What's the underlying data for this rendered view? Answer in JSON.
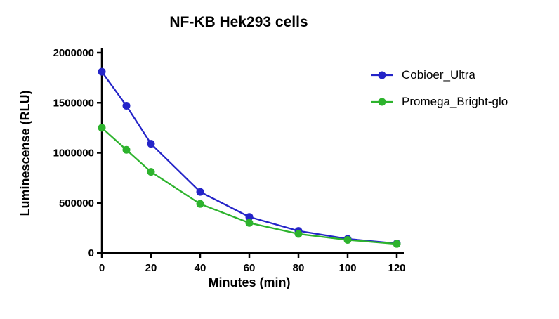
{
  "chart_data": {
    "type": "line",
    "title": "NF-KB Hek293 cells",
    "xlabel": "Minutes (min)",
    "ylabel": "Luminescense (RLU)",
    "x": [
      0,
      10,
      20,
      40,
      60,
      80,
      100,
      120
    ],
    "series": [
      {
        "name": "Cobioer_Ultra",
        "color": "#2424c8",
        "values": [
          1810000,
          1470000,
          1090000,
          610000,
          360000,
          220000,
          140000,
          95000
        ]
      },
      {
        "name": "Promega_Bright-glo",
        "color": "#2db32d",
        "values": [
          1250000,
          1030000,
          810000,
          490000,
          300000,
          190000,
          130000,
          90000
        ]
      }
    ],
    "xlim": [
      0,
      120
    ],
    "ylim": [
      0,
      2000000
    ],
    "x_ticks": [
      0,
      20,
      40,
      60,
      80,
      100,
      120
    ],
    "y_ticks": [
      0,
      500000,
      1000000,
      1500000,
      2000000
    ],
    "grid": false,
    "legend_position": "right",
    "axis_color": "#000000",
    "background_color": "#ffffff"
  }
}
